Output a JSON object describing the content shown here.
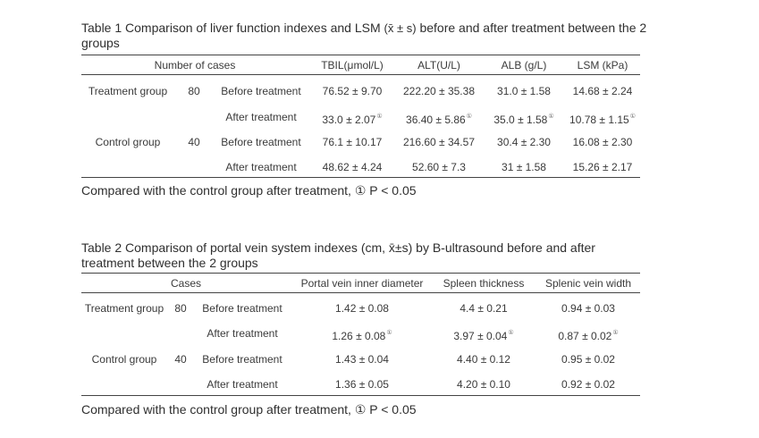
{
  "table1": {
    "caption_pre": "Table 1 Comparison of liver function indexes and LSM",
    "caption_stat": "(x̄ ± s)",
    "caption_post": " before and after treatment between the 2 groups",
    "headers": {
      "cases": "Number of cases",
      "tbil": "TBIL(μmol/L)",
      "alt": "ALT(U/L)",
      "alb": "ALB (g/L)",
      "lsm": "LSM (kPa)"
    },
    "rows": [
      {
        "group": "Treatment group",
        "n": "80",
        "time": "Before treatment",
        "c1": "76.52 ± 9.70",
        "c2": "222.20 ± 35.38",
        "c3": "31.0 ± 1.58",
        "c4": "14.68 ± 2.24"
      },
      {
        "group": "",
        "n": "",
        "time": "After treatment",
        "c1": "33.0 ± 2.07",
        "c2": "36.40 ± 5.86",
        "c3": "35.0 ± 1.58",
        "c4": "10.78 ± 1.15"
      },
      {
        "group": "Control group",
        "n": "40",
        "time": "Before treatment",
        "c1": "76.1 ± 10.17",
        "c2": "216.60 ± 34.57",
        "c3": "30.4 ± 2.30",
        "c4": "16.08 ± 2.30"
      },
      {
        "group": "",
        "n": "",
        "time": "After treatment",
        "c1": "48.62 ± 4.24",
        "c2": "52.60 ± 7.3",
        "c3": "31 ± 1.58",
        "c4": "15.26 ± 2.17"
      }
    ],
    "footnote": "Compared with the control group after treatment, ① P < 0.05"
  },
  "table2": {
    "caption": "Table 2 Comparison of portal vein system indexes (cm, x̄±s) by B-ultrasound before and after treatment between the 2 groups",
    "headers": {
      "cases": "Cases",
      "portal": "Portal vein inner diameter",
      "spleen": "Spleen thickness",
      "splenic": "Splenic vein width"
    },
    "rows": [
      {
        "group": "Treatment group",
        "n": "80",
        "time": "Before treatment",
        "c1": "1.42 ± 0.08",
        "c2": "4.4 ± 0.21",
        "c3": "0.94 ± 0.03"
      },
      {
        "group": "",
        "n": "",
        "time": "After treatment",
        "c1": "1.26 ± 0.08",
        "c2": "3.97 ± 0.04",
        "c3": "0.87 ± 0.02"
      },
      {
        "group": "Control group",
        "n": "40",
        "time": "Before treatment",
        "c1": "1.43 ± 0.04",
        "c2": "4.40 ± 0.12",
        "c3": "0.95 ± 0.02"
      },
      {
        "group": "",
        "n": "",
        "time": "After treatment",
        "c1": "1.36 ± 0.05",
        "c2": "4.20 ± 0.10",
        "c3": "0.92 ± 0.02"
      }
    ],
    "footnote": "Compared with the control group after treatment, ① P < 0.05"
  },
  "marker": "①"
}
